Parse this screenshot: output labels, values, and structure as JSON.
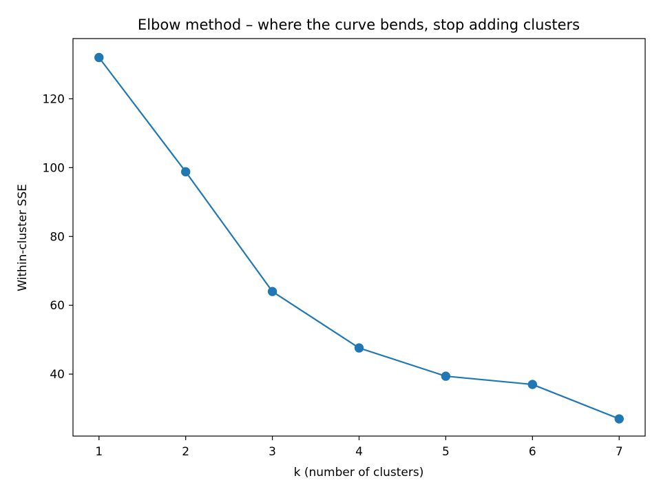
{
  "chart_data": {
    "type": "line",
    "title": "Elbow method – where the curve bends, stop adding clusters",
    "xlabel": "k  (number of clusters)",
    "ylabel": "Within-cluster SSE",
    "x": [
      1,
      2,
      3,
      4,
      5,
      6,
      7
    ],
    "series": [
      {
        "values": [
          132.0,
          98.8,
          64.0,
          47.6,
          39.4,
          37.0,
          27.0
        ]
      }
    ],
    "xlim": [
      0.7,
      7.3
    ],
    "ylim": [
      22.0,
      137.5
    ],
    "xticks": [
      1,
      2,
      3,
      4,
      5,
      6,
      7
    ],
    "yticks": [
      40,
      60,
      80,
      100,
      120
    ],
    "grid": false,
    "legend": false,
    "colors": {
      "line": "#1f77b4",
      "marker": "#1f77b4",
      "axes": "#000000",
      "background": "#ffffff"
    }
  }
}
